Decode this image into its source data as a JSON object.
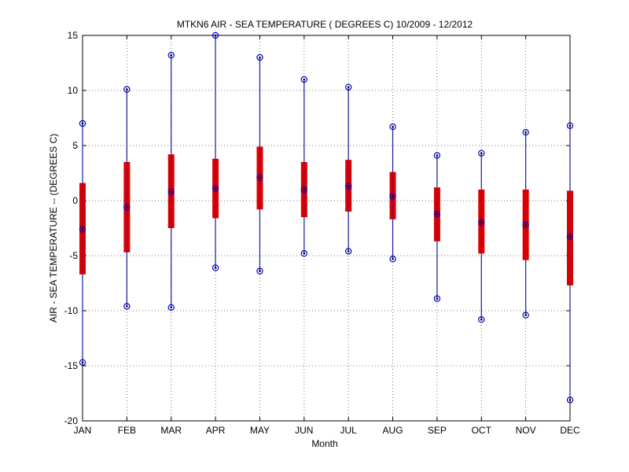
{
  "chart_data": {
    "type": "box",
    "title": "MTKN6  AIR - SEA TEMPERATURE ( DEGREES C) 10/2009 - 12/2012",
    "xlabel": "Month",
    "ylabel": "AIR - SEA TEMPERATURE -- (DEGREES C)",
    "ylim": [
      -20,
      15
    ],
    "yticks": [
      -20,
      -15,
      -10,
      -5,
      0,
      5,
      10,
      15
    ],
    "grid": true,
    "categories": [
      "JAN",
      "FEB",
      "MAR",
      "APR",
      "MAY",
      "JUN",
      "JUL",
      "AUG",
      "SEP",
      "OCT",
      "NOV",
      "DEC"
    ],
    "max": [
      7.0,
      10.1,
      13.2,
      15.0,
      13.0,
      11.0,
      10.3,
      6.7,
      4.1,
      4.3,
      6.2,
      6.8
    ],
    "q3": [
      1.6,
      3.5,
      4.2,
      3.8,
      4.9,
      3.5,
      3.7,
      2.6,
      1.2,
      1.0,
      1.0,
      0.9
    ],
    "median": [
      -2.6,
      -0.6,
      0.8,
      1.1,
      2.1,
      1.0,
      1.3,
      0.4,
      -1.2,
      -2.0,
      -2.2,
      -3.3
    ],
    "q1": [
      -6.7,
      -4.7,
      -2.5,
      -1.6,
      -0.8,
      -1.5,
      -1.0,
      -1.7,
      -3.7,
      -4.8,
      -5.4,
      -7.7
    ],
    "min": [
      -14.7,
      -9.6,
      -9.7,
      -6.1,
      -6.4,
      -4.8,
      -4.6,
      -5.3,
      -8.9,
      -10.8,
      -10.4,
      -18.1
    ],
    "colors": {
      "box": "#dd0000",
      "whisker": "#1a1aa0",
      "grid": "#555555",
      "marker": "#0000cc"
    }
  }
}
